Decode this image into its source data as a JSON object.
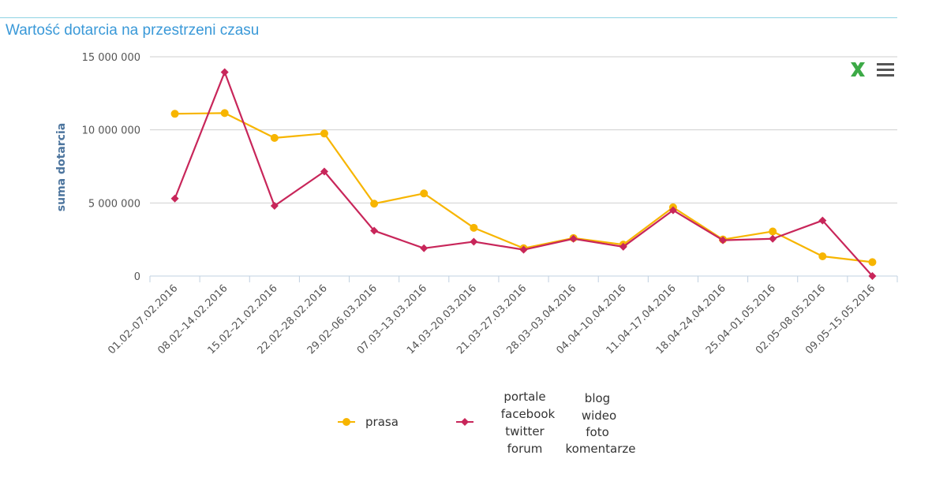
{
  "title": "Wartość dotarcia na przestrzeni czasu",
  "colors": {
    "prasa": "#f7b500",
    "other": "#c8265a",
    "grid": "#cfcfcf",
    "title": "#3a99d8"
  },
  "toolbar": {
    "export_icon": "excel-export-icon",
    "menu_icon": "hamburger-menu-icon"
  },
  "chart_data": {
    "type": "line",
    "ylabel": "suma dotarcia",
    "ylim": [
      0,
      15000000
    ],
    "yticks": [
      0,
      5000000,
      10000000,
      15000000
    ],
    "ytick_labels": [
      "0",
      "5 000 000",
      "10 000 000",
      "15 000 000"
    ],
    "categories": [
      "01.02–07.02.2016",
      "08.02–14.02.2016",
      "15.02–21.02.2016",
      "22.02–28.02.2016",
      "29.02–06.03.2016",
      "07.03–13.03.2016",
      "14.03–20.03.2016",
      "21.03–27.03.2016",
      "28.03–03.04.2016",
      "04.04–10.04.2016",
      "11.04–17.04.2016",
      "18.04–24.04.2016",
      "25.04–01.05.2016",
      "02.05–08.05.2016",
      "09.05–15.05.2016"
    ],
    "series": [
      {
        "name": "prasa",
        "marker": "circle",
        "values": [
          11100000,
          11150000,
          9450000,
          9750000,
          4950000,
          5650000,
          3300000,
          1900000,
          2600000,
          2150000,
          4700000,
          2500000,
          3050000,
          1350000,
          950000
        ]
      },
      {
        "name": "portale facebook twitter forum blog wideo foto komentarze",
        "marker": "diamond",
        "values": [
          5300000,
          13950000,
          4800000,
          7150000,
          3100000,
          1900000,
          2350000,
          1800000,
          2550000,
          2000000,
          4500000,
          2450000,
          2550000,
          3800000,
          0
        ]
      }
    ],
    "legend": {
      "prasa": "prasa",
      "col1": [
        "portale",
        "facebook",
        "twitter",
        "forum"
      ],
      "col2": [
        "blog",
        "wideo",
        "foto",
        "komentarze"
      ]
    },
    "grid": true,
    "legend_position": "bottom"
  }
}
